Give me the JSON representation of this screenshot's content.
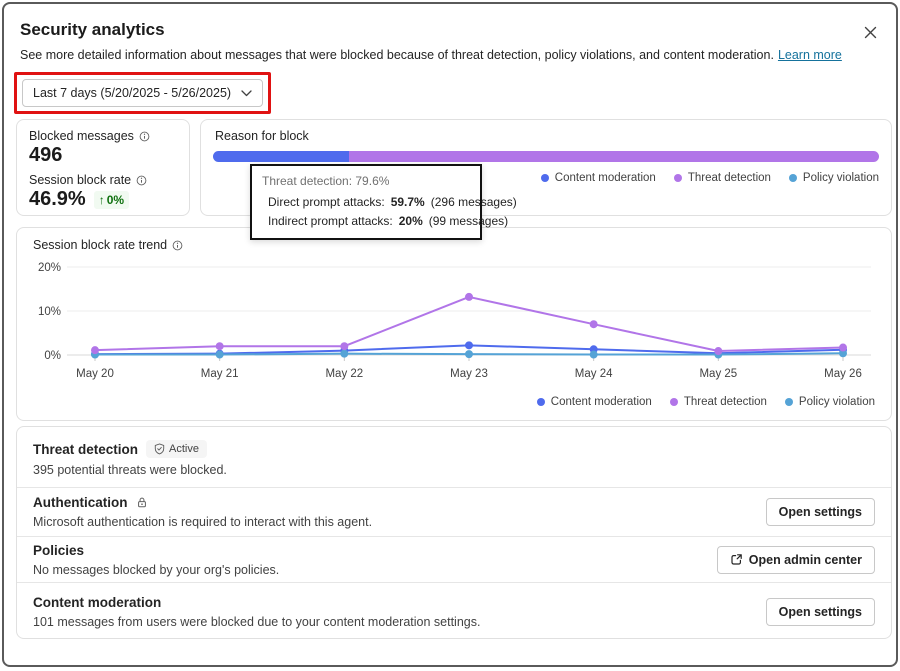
{
  "dialog": {
    "title": "Security analytics",
    "subtitle": "See more detailed information about messages that were blocked because of threat detection, policy violations, and content moderation.",
    "learn_more_label": "Learn more",
    "close_icon": "close"
  },
  "date_filter": {
    "label": "Last 7 days (5/20/2025 - 5/26/2025)"
  },
  "metrics": {
    "blocked_messages_label": "Blocked messages",
    "blocked_messages_value": "496",
    "session_block_rate_label": "Session block rate",
    "session_block_rate_value": "46.9%",
    "session_block_rate_delta": "0%",
    "delta_color": "#0e700e"
  },
  "reason_for_block": {
    "title": "Reason for block",
    "segments": [
      {
        "label": "Content moderation",
        "percent": 20.4,
        "color": "#4f6bed"
      },
      {
        "label": "Threat detection",
        "percent": 79.6,
        "color": "#b175e8"
      }
    ],
    "tooltip": {
      "title": "Threat detection: 79.6%",
      "items": [
        {
          "label": "Direct prompt attacks:",
          "value": "59.7%",
          "detail": "(296 messages)",
          "dot_color": "#b175e8"
        },
        {
          "label": "Indirect prompt attacks:",
          "value": "20%",
          "detail": "(99 messages)",
          "dot_color": "#b175e8"
        }
      ]
    }
  },
  "legend": {
    "items": [
      {
        "label": "Content moderation",
        "color": "#4f6bed"
      },
      {
        "label": "Threat detection",
        "color": "#b175e8"
      },
      {
        "label": "Policy violation",
        "color": "#55a3d6"
      }
    ]
  },
  "chart_data": {
    "type": "line",
    "title": "Session block rate trend",
    "x": [
      "May 20",
      "May 21",
      "May 22",
      "May 23",
      "May 24",
      "May 25",
      "May 26"
    ],
    "series": [
      {
        "name": "Content moderation",
        "color": "#4f6bed",
        "values": [
          0.2,
          0.3,
          1.0,
          2.2,
          1.3,
          0.4,
          1.2
        ]
      },
      {
        "name": "Threat detection",
        "color": "#b175e8",
        "values": [
          1.1,
          2.0,
          2.0,
          13.2,
          7.0,
          0.9,
          1.7
        ]
      },
      {
        "name": "Policy violation",
        "color": "#55a3d6",
        "values": [
          0.1,
          0.1,
          0.3,
          0.2,
          0.1,
          0.1,
          0.4
        ]
      }
    ],
    "ylim": [
      0,
      20
    ],
    "yticks": [
      "0%",
      "10%",
      "20%"
    ],
    "grid": true,
    "legend_position": "bottom-right"
  },
  "sections": [
    {
      "title": "Threat detection",
      "badge": "Active",
      "description": "395 potential threats were blocked.",
      "button": null
    },
    {
      "title": "Authentication",
      "description": "Microsoft authentication is required to interact with this agent.",
      "button": "Open settings"
    },
    {
      "title": "Policies",
      "description": "No messages blocked by your org's policies.",
      "button": "Open admin center"
    },
    {
      "title": "Content moderation",
      "description": "101 messages from users were blocked due to your content moderation settings.",
      "button": "Open settings"
    }
  ],
  "colors": {
    "annotation_red": "#e01212",
    "link_teal": "#15729c",
    "content_moderation_blue": "#4f6bed",
    "threat_detection_purple": "#b175e8",
    "policy_violation_blue": "#55a3d6",
    "positive_green": "#0e700e"
  }
}
